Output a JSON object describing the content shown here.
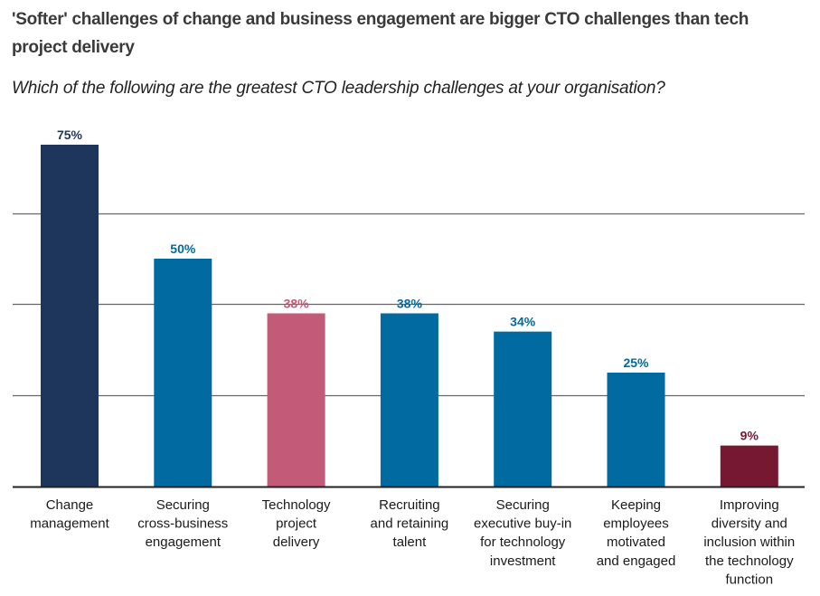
{
  "chart_data": {
    "type": "bar",
    "title": "'Softer' challenges of change and business engagement are bigger CTO challenges than tech project delivery",
    "subtitle": "Which of the following are the greatest CTO leadership challenges at your organisation?",
    "xlabel": "",
    "ylabel": "",
    "ylim": [
      0,
      75
    ],
    "gridlines": [
      20,
      40,
      60
    ],
    "grid": true,
    "legend": "none",
    "categories": [
      [
        "Change",
        "management"
      ],
      [
        "Securing",
        "cross-business",
        "engagement"
      ],
      [
        "Technology",
        "project",
        "delivery"
      ],
      [
        "Recruiting",
        "and retaining",
        "talent"
      ],
      [
        "Securing",
        "executive buy-in",
        "for technology",
        "investment"
      ],
      [
        "Keeping",
        "employees",
        "motivated",
        "and engaged"
      ],
      [
        "Improving",
        "diversity and",
        "inclusion within",
        "the technology",
        "function"
      ]
    ],
    "values": [
      75,
      50,
      38,
      38,
      34,
      25,
      9
    ],
    "value_labels": [
      "75%",
      "50%",
      "38%",
      "38%",
      "34%",
      "25%",
      "9%"
    ],
    "bar_colors": [
      "#1f365c",
      "#006aa1",
      "#c35a78",
      "#006aa1",
      "#006aa1",
      "#006aa1",
      "#761831"
    ],
    "label_colors": [
      "#1f365c",
      "#006aa1",
      "#c35a78",
      "#006aa1",
      "#006aa1",
      "#006aa1",
      "#761831"
    ]
  },
  "colors": {
    "gridline": "#666666",
    "axis": "#222222",
    "title": "#3a3a3a"
  }
}
